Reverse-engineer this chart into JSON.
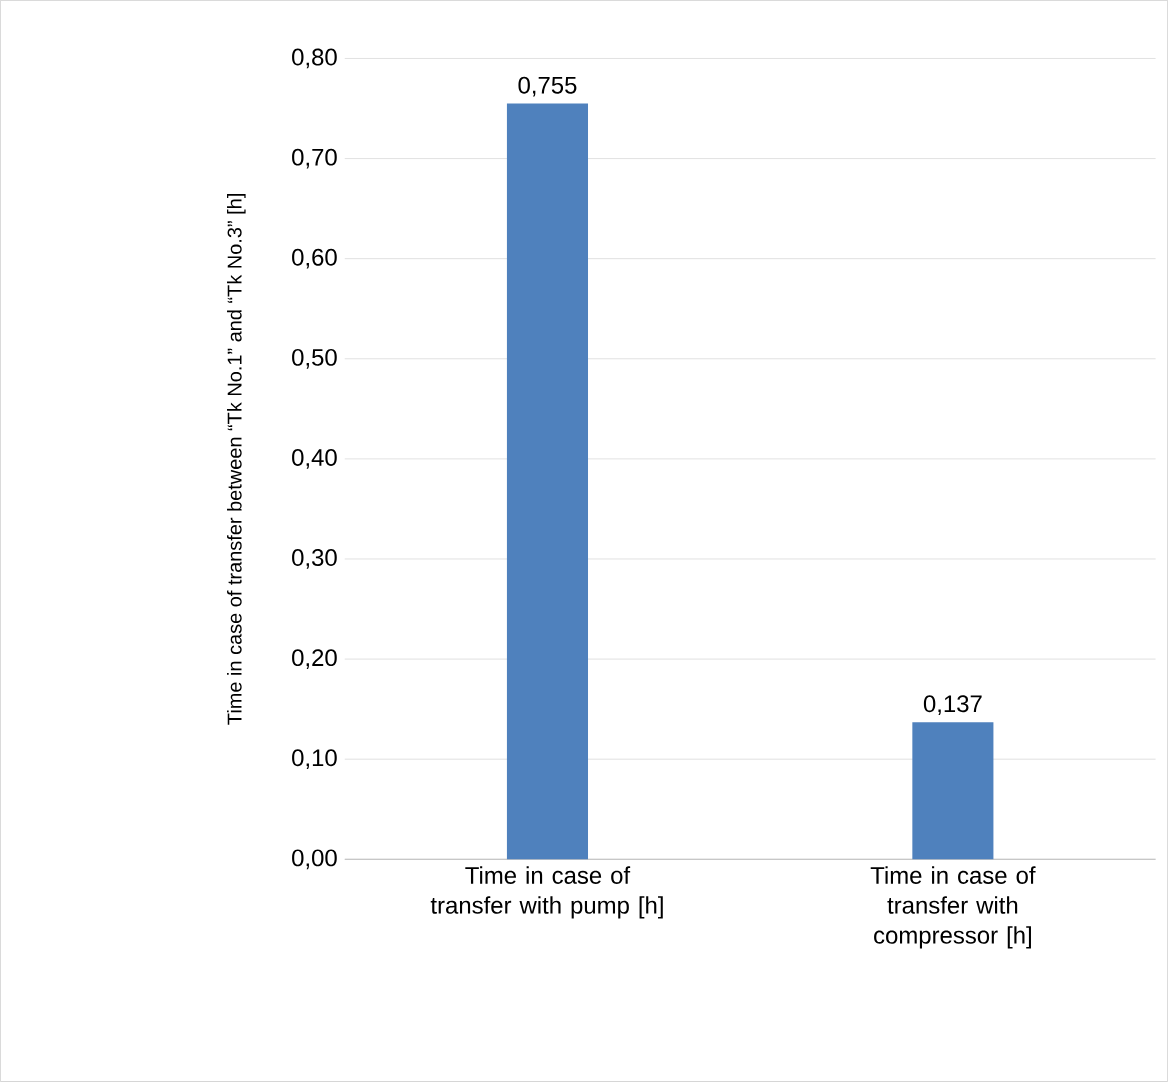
{
  "chart_data": {
    "type": "bar",
    "ylabel": "Time in case of transfer between “Tk No.1” and “Tk No.3”  [h]",
    "categories": [
      "Time in case of transfer with pump [h]",
      "Time in case of transfer with compressor [h]"
    ],
    "values": [
      0.755,
      0.137
    ],
    "value_labels": [
      "0,755",
      "0,137"
    ],
    "color": "#4f81bd",
    "ylim": [
      0,
      0.8
    ],
    "yticks": [
      {
        "value": 0,
        "label": "0,00"
      },
      {
        "value": 0.1,
        "label": "0,10"
      },
      {
        "value": 0.2,
        "label": "0,20"
      },
      {
        "value": 0.3,
        "label": "0,30"
      },
      {
        "value": 0.4,
        "label": "0,40"
      },
      {
        "value": 0.5,
        "label": "0,50"
      },
      {
        "value": 0.6,
        "label": "0,60"
      },
      {
        "value": 0.7,
        "label": "0,70"
      },
      {
        "value": 0.8,
        "label": "0,80"
      }
    ],
    "grid": "y"
  }
}
